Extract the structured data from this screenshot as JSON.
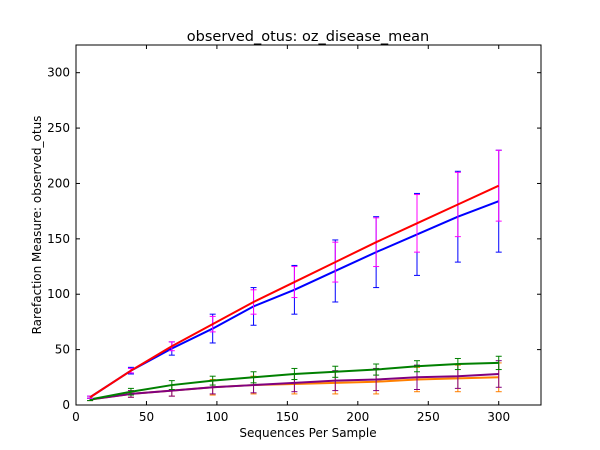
{
  "chart_data": {
    "type": "line",
    "title": "observed_otus: oz_disease_mean",
    "xlabel": "Sequences Per Sample",
    "ylabel": "Rarefaction Measure: observed_otus",
    "xlim": [
      0,
      330
    ],
    "ylim": [
      0,
      325
    ],
    "xticks": [
      0,
      50,
      100,
      150,
      200,
      250,
      300
    ],
    "yticks": [
      0,
      50,
      100,
      150,
      200,
      250,
      300
    ],
    "x": [
      10,
      39,
      68,
      97,
      126,
      155,
      184,
      213,
      242,
      271,
      300
    ],
    "grid": false,
    "legend": "none",
    "series": [
      {
        "color": "#ff0000",
        "values": [
          7,
          31,
          53,
          73,
          93,
          111,
          129,
          147,
          164,
          181,
          198
        ],
        "errors": [
          1,
          2,
          4,
          7,
          11,
          14,
          18,
          22,
          26,
          29,
          32
        ],
        "error_color": "#ff00ff"
      },
      {
        "color": "#0000ff",
        "values": [
          7,
          31,
          51,
          69,
          89,
          104,
          121,
          138,
          154,
          170,
          184
        ],
        "errors": [
          1,
          3,
          6,
          13,
          17,
          22,
          28,
          32,
          37,
          41,
          46
        ],
        "error_color": "#0000ff"
      },
      {
        "color": "#008000",
        "values": [
          5,
          12,
          18,
          22,
          25,
          28,
          30,
          32,
          35,
          37,
          38
        ],
        "errors": [
          1,
          3,
          4,
          4,
          5,
          5,
          5,
          5,
          5,
          5,
          6
        ],
        "error_color": "#008000"
      },
      {
        "color": "#800080",
        "values": [
          5,
          10,
          13,
          16,
          18,
          20,
          22,
          23,
          25,
          26,
          28
        ],
        "errors": [
          1,
          3,
          5,
          6,
          7,
          8,
          9,
          10,
          11,
          11,
          12
        ],
        "error_color": "#800080"
      },
      {
        "color": "#ff7f00",
        "values": [
          5,
          10,
          13,
          16,
          18,
          19,
          20,
          21,
          23,
          24,
          25
        ],
        "errors": [
          1,
          3,
          5,
          7,
          8,
          9,
          10,
          11,
          11,
          12,
          13
        ],
        "error_color": "#ff7f00"
      }
    ]
  }
}
